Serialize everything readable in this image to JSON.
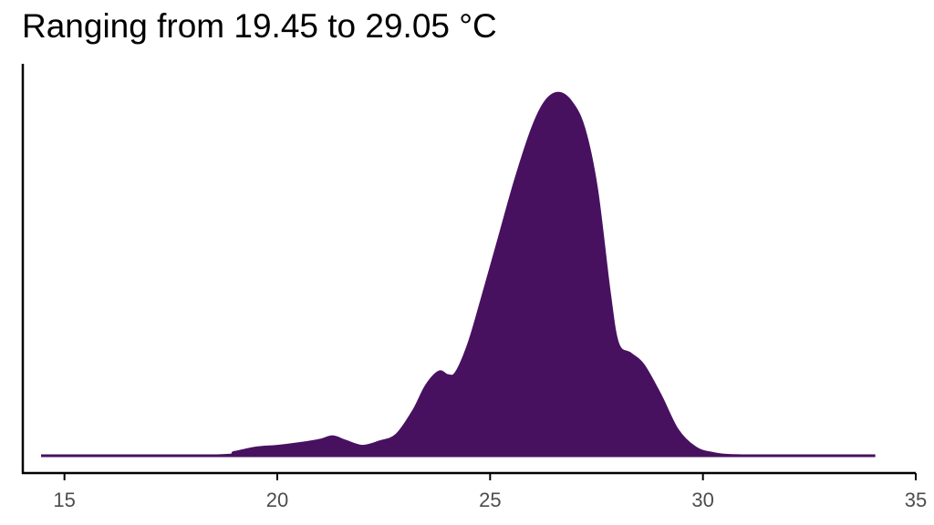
{
  "chart_data": {
    "type": "area",
    "title": "Ranging from 19.45 to 29.05 °C",
    "xlabel": "",
    "ylabel": "",
    "xlim": [
      14,
      35
    ],
    "ylim": [
      0,
      0.433
    ],
    "grid": false,
    "legend": "none",
    "x_ticks": [
      15,
      20,
      25,
      30,
      35
    ],
    "x_tick_labels": [
      "15",
      "20",
      "25",
      "30",
      "35"
    ],
    "fill_color": "#481160",
    "series": [
      {
        "x": [
          14.45,
          18.5,
          19.0,
          19.5,
          20.0,
          20.5,
          21.0,
          21.3,
          21.6,
          22.0,
          22.4,
          22.8,
          23.2,
          23.5,
          23.8,
          24.0,
          24.2,
          24.5,
          24.8,
          25.2,
          25.6,
          26.0,
          26.3,
          26.6,
          26.9,
          27.2,
          27.5,
          27.8,
          28.0,
          28.3,
          28.6,
          29.0,
          29.4,
          29.8,
          30.2,
          31.0,
          34.05
        ],
        "y": [
          0.0,
          0.0,
          0.004,
          0.009,
          0.011,
          0.014,
          0.018,
          0.022,
          0.017,
          0.011,
          0.016,
          0.024,
          0.052,
          0.081,
          0.097,
          0.093,
          0.096,
          0.13,
          0.18,
          0.25,
          0.32,
          0.38,
          0.41,
          0.42,
          0.41,
          0.38,
          0.31,
          0.19,
          0.13,
          0.118,
          0.105,
          0.07,
          0.03,
          0.01,
          0.003,
          0.0,
          0.0
        ]
      }
    ]
  }
}
